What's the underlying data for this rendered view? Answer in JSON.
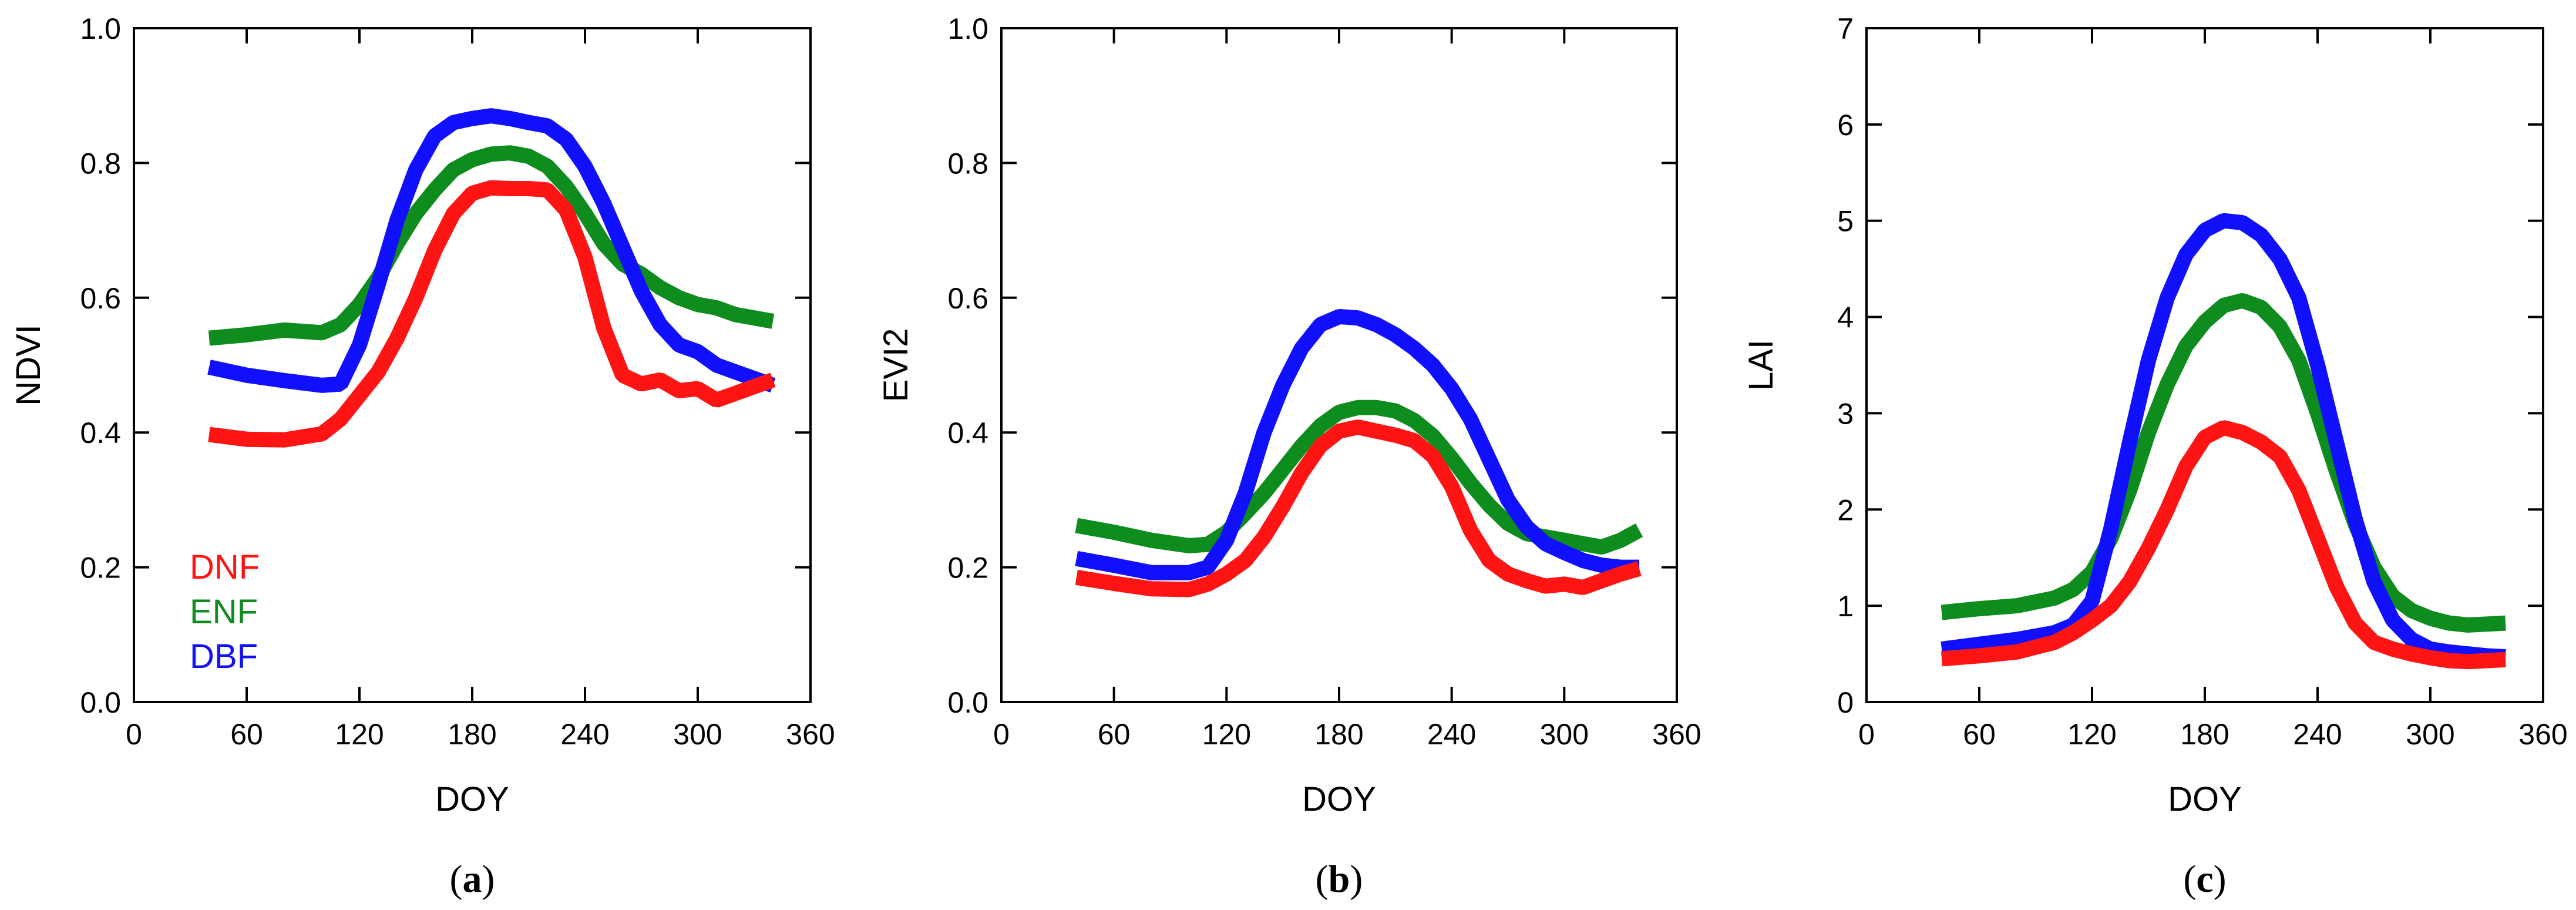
{
  "chart_data": [
    {
      "type": "line",
      "panel": "(a)",
      "caption": {
        "open": "(",
        "letter": "a",
        "close": ")"
      },
      "xlabel": "DOY",
      "ylabel": "NDVI",
      "xlim": [
        0,
        360
      ],
      "ylim": [
        0.0,
        1.0
      ],
      "xticks": [
        0,
        60,
        120,
        180,
        240,
        300,
        360
      ],
      "yticks": [
        "0.0",
        "0.2",
        "0.4",
        "0.6",
        "0.8",
        "1.0"
      ],
      "legend": {
        "position": "lower-left",
        "entries": [
          "DNF",
          "ENF",
          "DBF"
        ]
      },
      "series": [
        {
          "name": "ENF",
          "color": "#0e8c1e",
          "x": [
            40,
            60,
            80,
            100,
            110,
            120,
            130,
            140,
            150,
            160,
            170,
            180,
            190,
            200,
            210,
            220,
            230,
            240,
            250,
            260,
            270,
            280,
            290,
            300,
            310,
            320,
            330,
            340
          ],
          "y": [
            0.54,
            0.545,
            0.552,
            0.548,
            0.56,
            0.59,
            0.63,
            0.68,
            0.725,
            0.76,
            0.79,
            0.805,
            0.813,
            0.815,
            0.81,
            0.795,
            0.765,
            0.725,
            0.68,
            0.65,
            0.635,
            0.615,
            0.6,
            0.59,
            0.585,
            0.575,
            0.57,
            0.565
          ]
        },
        {
          "name": "DBF",
          "color": "#1010ff",
          "x": [
            40,
            60,
            80,
            100,
            110,
            120,
            130,
            140,
            150,
            160,
            170,
            180,
            190,
            200,
            210,
            220,
            230,
            240,
            250,
            260,
            270,
            280,
            290,
            300,
            310,
            320,
            330,
            340
          ],
          "y": [
            0.497,
            0.485,
            0.477,
            0.47,
            0.472,
            0.53,
            0.62,
            0.715,
            0.79,
            0.84,
            0.86,
            0.866,
            0.87,
            0.866,
            0.86,
            0.855,
            0.835,
            0.795,
            0.74,
            0.675,
            0.61,
            0.56,
            0.53,
            0.52,
            0.5,
            0.49,
            0.48,
            0.47
          ]
        },
        {
          "name": "DNF",
          "color": "#ff1414",
          "x": [
            40,
            60,
            80,
            100,
            110,
            120,
            130,
            140,
            150,
            160,
            170,
            180,
            190,
            200,
            210,
            220,
            230,
            240,
            250,
            260,
            270,
            280,
            290,
            300,
            310,
            320,
            330,
            340
          ],
          "y": [
            0.397,
            0.39,
            0.389,
            0.398,
            0.42,
            0.455,
            0.49,
            0.54,
            0.6,
            0.67,
            0.725,
            0.755,
            0.763,
            0.762,
            0.762,
            0.76,
            0.73,
            0.66,
            0.555,
            0.485,
            0.472,
            0.478,
            0.462,
            0.465,
            0.448,
            0.458,
            0.468,
            0.478
          ]
        }
      ]
    },
    {
      "type": "line",
      "panel": "(b)",
      "caption": {
        "open": "(",
        "letter": "b",
        "close": ")"
      },
      "xlabel": "DOY",
      "ylabel": "EVI2",
      "xlim": [
        0,
        360
      ],
      "ylim": [
        0.0,
        1.0
      ],
      "xticks": [
        0,
        60,
        120,
        180,
        240,
        300,
        360
      ],
      "yticks": [
        "0.0",
        "0.2",
        "0.4",
        "0.6",
        "0.8",
        "1.0"
      ],
      "series": [
        {
          "name": "ENF",
          "color": "#0e8c1e",
          "x": [
            40,
            60,
            80,
            100,
            110,
            120,
            130,
            140,
            150,
            160,
            170,
            180,
            190,
            200,
            210,
            220,
            230,
            240,
            250,
            260,
            270,
            280,
            290,
            300,
            310,
            320,
            330,
            340
          ],
          "y": [
            0.262,
            0.252,
            0.24,
            0.232,
            0.234,
            0.252,
            0.28,
            0.31,
            0.345,
            0.38,
            0.41,
            0.43,
            0.437,
            0.437,
            0.432,
            0.418,
            0.395,
            0.362,
            0.325,
            0.292,
            0.265,
            0.25,
            0.245,
            0.24,
            0.235,
            0.23,
            0.24,
            0.255
          ]
        },
        {
          "name": "DBF",
          "color": "#1010ff",
          "x": [
            40,
            60,
            80,
            100,
            110,
            120,
            130,
            140,
            150,
            160,
            170,
            180,
            190,
            200,
            210,
            220,
            230,
            240,
            250,
            260,
            270,
            280,
            290,
            300,
            310,
            320,
            330,
            340
          ],
          "y": [
            0.213,
            0.203,
            0.192,
            0.192,
            0.2,
            0.24,
            0.31,
            0.4,
            0.47,
            0.525,
            0.56,
            0.572,
            0.57,
            0.56,
            0.545,
            0.525,
            0.5,
            0.465,
            0.42,
            0.36,
            0.3,
            0.26,
            0.235,
            0.222,
            0.21,
            0.203,
            0.2,
            0.2
          ]
        },
        {
          "name": "DNF",
          "color": "#ff1414",
          "x": [
            40,
            60,
            80,
            100,
            110,
            120,
            130,
            140,
            150,
            160,
            170,
            180,
            190,
            200,
            210,
            220,
            230,
            240,
            250,
            260,
            270,
            280,
            290,
            300,
            310,
            320,
            330,
            340
          ],
          "y": [
            0.185,
            0.176,
            0.168,
            0.167,
            0.175,
            0.19,
            0.21,
            0.245,
            0.29,
            0.34,
            0.38,
            0.402,
            0.408,
            0.402,
            0.396,
            0.388,
            0.365,
            0.32,
            0.255,
            0.21,
            0.19,
            0.18,
            0.172,
            0.175,
            0.17,
            0.18,
            0.19,
            0.198
          ]
        }
      ]
    },
    {
      "type": "line",
      "panel": "(c)",
      "caption": {
        "open": "(",
        "letter": "c",
        "close": ")"
      },
      "xlabel": "DOY",
      "ylabel": "LAI",
      "xlim": [
        0,
        360
      ],
      "ylim": [
        0,
        7
      ],
      "xticks": [
        0,
        60,
        120,
        180,
        240,
        300,
        360
      ],
      "yticks": [
        "0",
        "1",
        "2",
        "3",
        "4",
        "5",
        "6",
        "7"
      ],
      "series": [
        {
          "name": "ENF",
          "color": "#0e8c1e",
          "x": [
            40,
            60,
            80,
            100,
            110,
            120,
            130,
            140,
            150,
            160,
            170,
            180,
            190,
            200,
            210,
            220,
            230,
            240,
            250,
            260,
            270,
            280,
            290,
            300,
            310,
            320,
            330,
            340
          ],
          "y": [
            0.93,
            0.97,
            1.0,
            1.08,
            1.17,
            1.35,
            1.7,
            2.2,
            2.8,
            3.3,
            3.7,
            3.95,
            4.12,
            4.17,
            4.1,
            3.9,
            3.55,
            3.0,
            2.4,
            1.85,
            1.4,
            1.1,
            0.95,
            0.87,
            0.82,
            0.8,
            0.81,
            0.82
          ]
        },
        {
          "name": "DBF",
          "color": "#1010ff",
          "x": [
            40,
            60,
            80,
            100,
            110,
            120,
            130,
            140,
            150,
            160,
            170,
            180,
            190,
            200,
            210,
            220,
            230,
            240,
            250,
            260,
            270,
            280,
            290,
            300,
            310,
            320,
            330,
            340
          ],
          "y": [
            0.55,
            0.6,
            0.65,
            0.72,
            0.8,
            1.05,
            1.8,
            2.7,
            3.55,
            4.2,
            4.65,
            4.9,
            5.0,
            4.98,
            4.85,
            4.6,
            4.2,
            3.5,
            2.7,
            1.9,
            1.25,
            0.85,
            0.65,
            0.55,
            0.52,
            0.5,
            0.48,
            0.47
          ]
        },
        {
          "name": "DNF",
          "color": "#ff1414",
          "x": [
            40,
            60,
            80,
            100,
            110,
            120,
            130,
            140,
            150,
            160,
            170,
            180,
            190,
            200,
            210,
            220,
            230,
            240,
            250,
            260,
            270,
            280,
            290,
            300,
            310,
            320,
            330,
            340
          ],
          "y": [
            0.45,
            0.48,
            0.52,
            0.62,
            0.72,
            0.85,
            1.0,
            1.25,
            1.6,
            2.0,
            2.45,
            2.75,
            2.85,
            2.8,
            2.7,
            2.55,
            2.2,
            1.7,
            1.2,
            0.82,
            0.62,
            0.55,
            0.5,
            0.46,
            0.43,
            0.42,
            0.43,
            0.44
          ]
        }
      ]
    }
  ]
}
